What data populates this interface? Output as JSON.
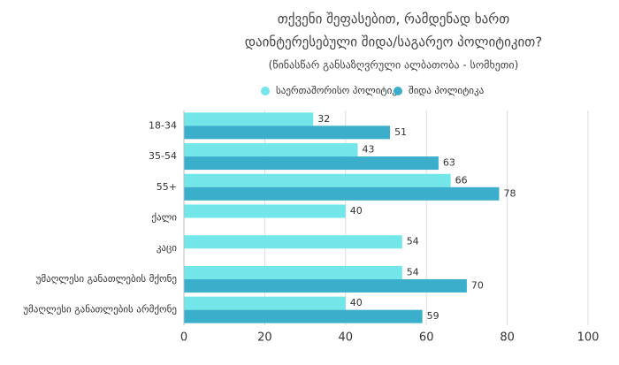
{
  "chart_data": {
    "type": "hbar",
    "title": [
      "თქვენი შეფასებით, რამდენად ხართ",
      "დაინტერესებული შიდა/საგარეო პოლიტიკით?"
    ],
    "subtitle": "(წინასწარ განსაზღვრული ალბათობა - სომხეთი)",
    "categories": [
      "18-34",
      "35-54",
      "55+",
      "ქალი",
      "კაცი",
      "უმაღლესი განათლების მქონე",
      "უმაღლესი განათლების არმქონე"
    ],
    "series": [
      {
        "name": "საერთაშორისო პოლიტიკა",
        "color": "#72e6e8",
        "values": [
          32,
          43,
          66,
          40,
          54,
          54,
          40
        ]
      },
      {
        "name": "შიდა პოლიტიკა",
        "color": "#3aaecb",
        "values": [
          51,
          63,
          78,
          null,
          null,
          70,
          59
        ]
      }
    ],
    "xlim": [
      0,
      100
    ],
    "xticks": [
      0,
      20,
      40,
      60,
      80,
      100
    ],
    "grid": true
  }
}
